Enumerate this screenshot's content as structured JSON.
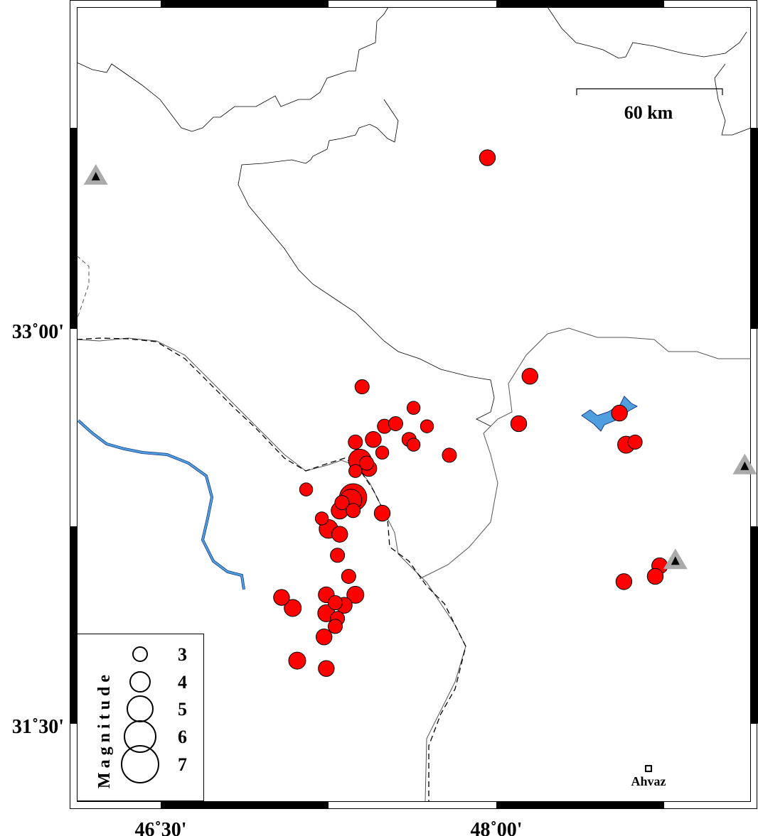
{
  "map": {
    "axes": {
      "x_ticks": [
        {
          "lon": 46.5,
          "label": "46˚30'"
        },
        {
          "lon": 48.0,
          "label": "48˚00'"
        }
      ],
      "y_ticks": [
        {
          "lat": 33.0,
          "label": "33˚00'"
        },
        {
          "lat": 31.5,
          "label": "31˚30'"
        }
      ]
    },
    "scale_bar": {
      "label": "60 km"
    },
    "colors": {
      "event_fill": "#ff0000",
      "event_stroke": "#000000",
      "water": "#4f9fdf",
      "station_outer": "#aaaaaa",
      "station_inner": "#000000"
    },
    "events": [
      {
        "lon": 47.96,
        "lat": 33.65,
        "mag": 3.3
      },
      {
        "lon": 47.4,
        "lat": 32.78,
        "mag": 3.0
      },
      {
        "lon": 47.63,
        "lat": 32.7,
        "mag": 2.8
      },
      {
        "lon": 47.5,
        "lat": 32.63,
        "mag": 3.0
      },
      {
        "lon": 47.55,
        "lat": 32.64,
        "mag": 3.0
      },
      {
        "lon": 47.69,
        "lat": 32.63,
        "mag": 2.8
      },
      {
        "lon": 47.37,
        "lat": 32.57,
        "mag": 3.0
      },
      {
        "lon": 47.45,
        "lat": 32.58,
        "mag": 3.3
      },
      {
        "lon": 47.61,
        "lat": 32.58,
        "mag": 3.0
      },
      {
        "lon": 47.63,
        "lat": 32.56,
        "mag": 2.8
      },
      {
        "lon": 47.49,
        "lat": 32.53,
        "mag": 2.8
      },
      {
        "lon": 47.79,
        "lat": 32.52,
        "mag": 3.0
      },
      {
        "lon": 47.39,
        "lat": 32.5,
        "mag": 4.5
      },
      {
        "lon": 47.42,
        "lat": 32.49,
        "mag": 3.0
      },
      {
        "lon": 47.43,
        "lat": 32.47,
        "mag": 3.3
      },
      {
        "lon": 47.37,
        "lat": 32.46,
        "mag": 2.8
      },
      {
        "lon": 47.15,
        "lat": 32.39,
        "mag": 2.8
      },
      {
        "lon": 47.36,
        "lat": 32.36,
        "mag": 5.3
      },
      {
        "lon": 47.35,
        "lat": 32.35,
        "mag": 4.3
      },
      {
        "lon": 47.31,
        "lat": 32.34,
        "mag": 3.0
      },
      {
        "lon": 47.3,
        "lat": 32.31,
        "mag": 3.5
      },
      {
        "lon": 47.36,
        "lat": 32.31,
        "mag": 3.0
      },
      {
        "lon": 47.49,
        "lat": 32.3,
        "mag": 3.3
      },
      {
        "lon": 47.22,
        "lat": 32.28,
        "mag": 2.8
      },
      {
        "lon": 47.25,
        "lat": 32.24,
        "mag": 3.8
      },
      {
        "lon": 47.3,
        "lat": 32.22,
        "mag": 3.3
      },
      {
        "lon": 47.29,
        "lat": 32.14,
        "mag": 3.0
      },
      {
        "lon": 47.34,
        "lat": 32.06,
        "mag": 3.0
      },
      {
        "lon": 47.37,
        "lat": 31.99,
        "mag": 3.5
      },
      {
        "lon": 47.24,
        "lat": 31.99,
        "mag": 3.3
      },
      {
        "lon": 47.04,
        "lat": 31.98,
        "mag": 3.3
      },
      {
        "lon": 47.09,
        "lat": 31.94,
        "mag": 3.5
      },
      {
        "lon": 47.28,
        "lat": 31.96,
        "mag": 3.0
      },
      {
        "lon": 47.32,
        "lat": 31.95,
        "mag": 3.3
      },
      {
        "lon": 47.24,
        "lat": 31.92,
        "mag": 3.5
      },
      {
        "lon": 47.29,
        "lat": 31.9,
        "mag": 3.0
      },
      {
        "lon": 47.28,
        "lat": 31.87,
        "mag": 3.0
      },
      {
        "lon": 47.23,
        "lat": 31.83,
        "mag": 3.3
      },
      {
        "lon": 47.11,
        "lat": 31.74,
        "mag": 3.5
      },
      {
        "lon": 47.24,
        "lat": 31.71,
        "mag": 3.3
      },
      {
        "lon": 48.15,
        "lat": 32.82,
        "mag": 3.3
      },
      {
        "lon": 48.1,
        "lat": 32.64,
        "mag": 3.3
      },
      {
        "lon": 48.55,
        "lat": 32.68,
        "mag": 3.3
      },
      {
        "lon": 48.58,
        "lat": 32.56,
        "mag": 3.5
      },
      {
        "lon": 48.62,
        "lat": 32.57,
        "mag": 3.0
      },
      {
        "lon": 48.73,
        "lat": 32.1,
        "mag": 3.3
      },
      {
        "lon": 48.71,
        "lat": 32.06,
        "mag": 3.3
      },
      {
        "lon": 48.57,
        "lat": 32.04,
        "mag": 3.3
      }
    ],
    "stations": [
      {
        "lon": 46.21,
        "lat": 33.58
      },
      {
        "lon": 49.11,
        "lat": 32.48
      },
      {
        "lon": 48.8,
        "lat": 32.12
      }
    ],
    "cities": [
      {
        "name": "Ahvaz",
        "lon": 48.68,
        "lat": 31.33
      }
    ]
  },
  "legend": {
    "title": "Magnitude",
    "magnitudes": [
      {
        "mag": 3,
        "label": "3"
      },
      {
        "mag": 4,
        "label": "4"
      },
      {
        "mag": 5,
        "label": "5"
      },
      {
        "mag": 6,
        "label": "6"
      },
      {
        "mag": 7,
        "label": "7"
      }
    ]
  }
}
